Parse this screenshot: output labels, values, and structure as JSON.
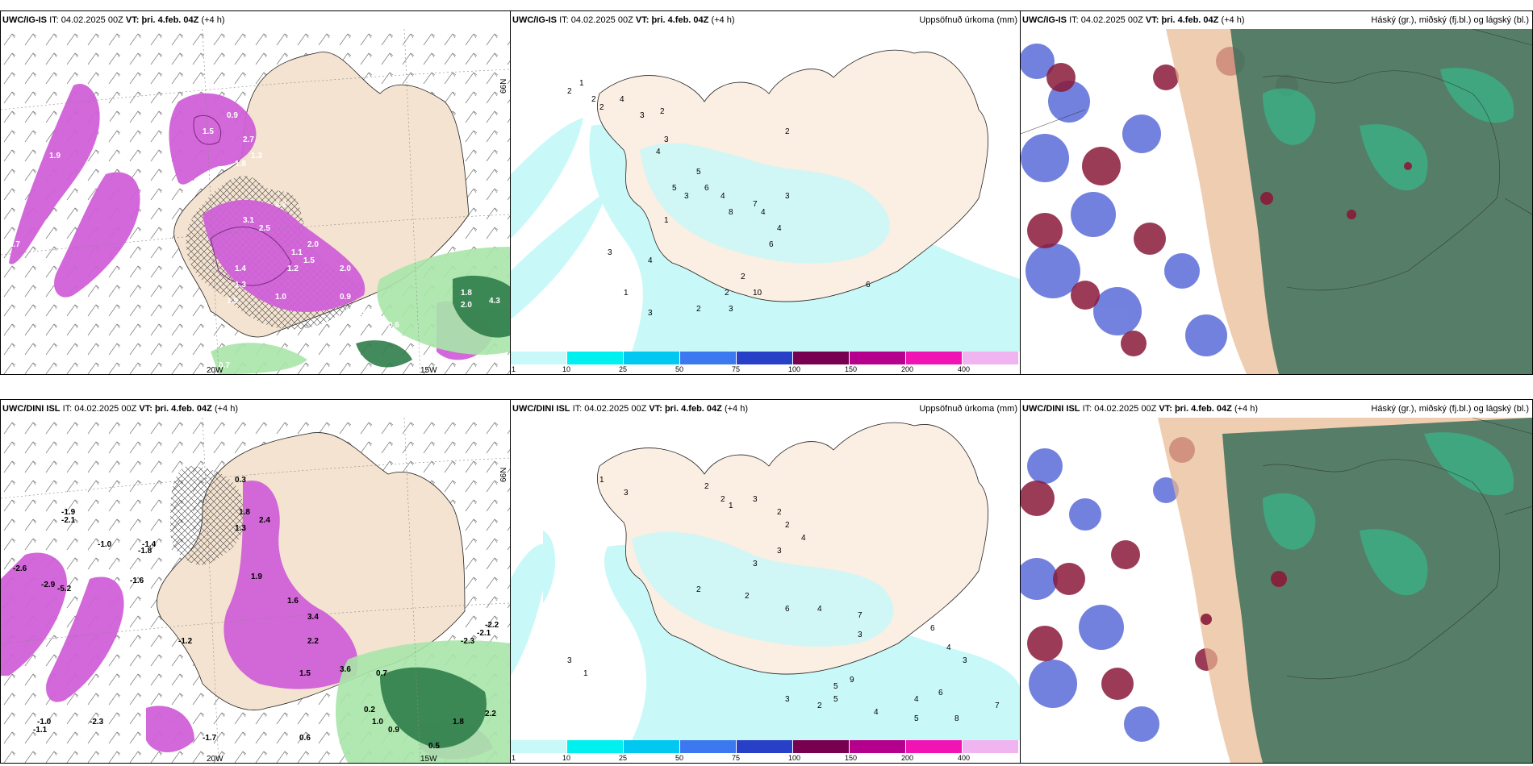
{
  "legend": {
    "ticks": [
      "1",
      "10",
      "25",
      "50",
      "75",
      "100",
      "150",
      "200",
      "400"
    ],
    "colors": [
      "#c8f8f8",
      "#00f0f0",
      "#00c8f0",
      "#3c78f0",
      "#2840c8",
      "#780050",
      "#b4008c",
      "#f014b4",
      "#f0b4f0"
    ]
  },
  "rows": [
    {
      "model": "UWC/IG-IS",
      "it_label": "IT:",
      "it_value": "04.02.2025 00Z",
      "vt_label": "VT:",
      "vt_value": "þri. 4.feb. 04Z",
      "lead": "(+4 h)",
      "precip_title": "Uppsöfnuð úrkoma (mm)",
      "cloud_title": "Háský (gr.), miðský (fj.bl.) og lágský (bl.)",
      "lon_labels": [
        "20W",
        "15W"
      ],
      "lat_label": "66N",
      "temps": [
        "2.5",
        "1.9",
        "0.4",
        "2.7",
        "1.3",
        "0.9",
        "1.5",
        "1.8",
        "2.2",
        "3.1",
        "2.5",
        "2.0",
        "1.1",
        "1.2",
        "1.5",
        "1.4",
        "2.0",
        "1.3",
        "1.9",
        "0.9",
        "0.5",
        "0.8",
        "0.6",
        "0.7",
        "4.3",
        "1.8",
        "2.0",
        "1.0",
        "1.7"
      ],
      "precip": [
        "1",
        "2",
        "2",
        "2",
        "4",
        "3",
        "2",
        "3",
        "4",
        "5",
        "5",
        "6",
        "4",
        "8",
        "7",
        "4",
        "4",
        "6",
        "2",
        "2",
        "3",
        "3",
        "1",
        "3",
        "4",
        "3",
        "6",
        "10",
        "2",
        "3",
        "1",
        "2"
      ]
    },
    {
      "model": "UWC/DINI ISL",
      "it_label": "IT:",
      "it_value": "04.02.2025 00Z",
      "vt_label": "VT:",
      "vt_value": "þri. 4.feb. 04Z",
      "lead": "(+4 h)",
      "precip_title": "Uppsöfnuð úrkoma (mm)",
      "cloud_title": "Háský (gr.), miðský (fj.bl.) og lágský (bl.)",
      "lon_labels": [
        "20W",
        "15W"
      ],
      "lat_label": "66N",
      "temps": [
        "-1.9",
        "-2.1",
        "-1.0",
        "-1.4",
        "-1.8",
        "-2.6",
        "-2.9",
        "-5.2",
        "-1.6",
        "-1.2",
        "0.3",
        "1.8",
        "2.4",
        "1.3",
        "1.9",
        "1.6",
        "3.4",
        "2.2",
        "1.5",
        "3.6",
        "0.7",
        "0.2",
        "1.0",
        "0.9",
        "0.6",
        "-2.3",
        "-1.0",
        "-1.1",
        "-1.7",
        "-2.2",
        "-2.1",
        "-2.3",
        "2.2",
        "1.8",
        "0.5"
      ],
      "precip": [
        "1",
        "3",
        "2",
        "2",
        "1",
        "3",
        "2",
        "2",
        "4",
        "3",
        "3",
        "2",
        "2",
        "6",
        "4",
        "7",
        "3",
        "6",
        "4",
        "3",
        "9",
        "5",
        "5",
        "3",
        "2",
        "4",
        "7",
        "6",
        "8",
        "5",
        "4",
        "1",
        "3"
      ]
    }
  ]
}
